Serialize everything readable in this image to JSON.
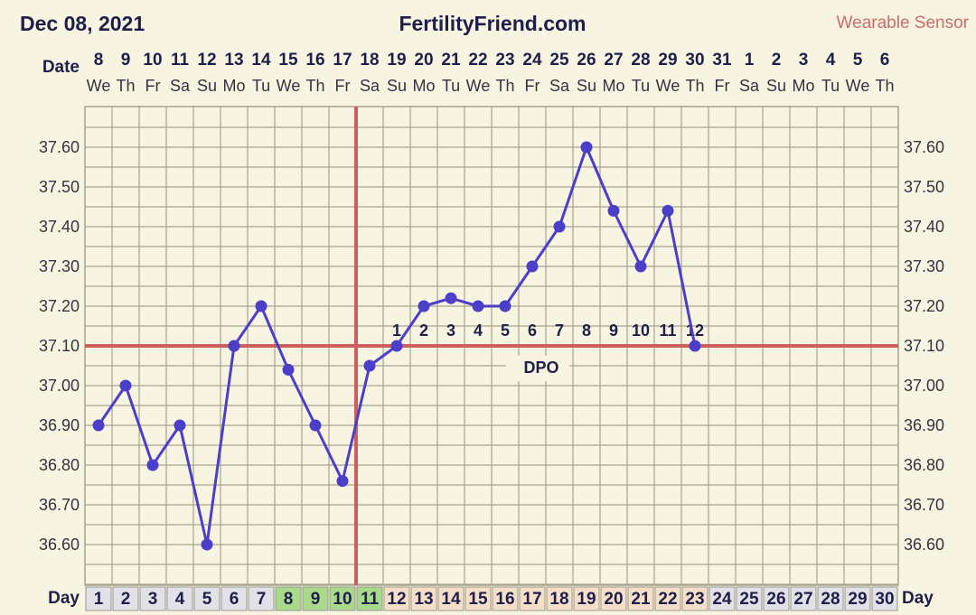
{
  "header": {
    "date": "Dec 08, 2021",
    "site": "FertilityFriend.com",
    "sensor": "Wearable Sensor"
  },
  "labels": {
    "date_row": "Date",
    "day_row": "Day",
    "dpo": "DPO"
  },
  "colors": {
    "background": "#f7f5e2",
    "grid": "#a7a38f",
    "line": "#4b3ec8",
    "point": "#4b3ec8",
    "coverline": "#cf5f5f",
    "title": "#1e1e4a",
    "sensor": "#d06a6a",
    "day_default": "#e3e1e8",
    "day_fertile": "#a9d98b",
    "day_luteal": "#f6dfc9"
  },
  "chart_data": {
    "type": "line",
    "dates": [
      "8",
      "9",
      "10",
      "11",
      "12",
      "13",
      "14",
      "15",
      "16",
      "17",
      "18",
      "19",
      "20",
      "21",
      "22",
      "23",
      "24",
      "25",
      "26",
      "27",
      "28",
      "29",
      "30",
      "31",
      "1",
      "2",
      "3",
      "4",
      "5",
      "6"
    ],
    "weekdays": [
      "We",
      "Th",
      "Fr",
      "Sa",
      "Su",
      "Mo",
      "Tu",
      "We",
      "Th",
      "Fr",
      "Sa",
      "Su",
      "Mo",
      "Tu",
      "We",
      "Th",
      "Fr",
      "Sa",
      "Su",
      "Mo",
      "Tu",
      "We",
      "Th",
      "Fr",
      "Sa",
      "Su",
      "Mo",
      "Tu",
      "We",
      "Th"
    ],
    "days": [
      "1",
      "2",
      "3",
      "4",
      "5",
      "6",
      "7",
      "8",
      "9",
      "10",
      "11",
      "12",
      "13",
      "14",
      "15",
      "16",
      "17",
      "18",
      "19",
      "20",
      "21",
      "22",
      "23",
      "24",
      "25",
      "26",
      "27",
      "28",
      "29",
      "30"
    ],
    "day_types": [
      "default",
      "default",
      "default",
      "default",
      "default",
      "default",
      "default",
      "fertile",
      "fertile",
      "fertile",
      "fertile",
      "luteal",
      "luteal",
      "luteal",
      "luteal",
      "luteal",
      "luteal",
      "luteal",
      "luteal",
      "luteal",
      "luteal",
      "luteal",
      "luteal",
      "default",
      "default",
      "default",
      "default",
      "default",
      "default",
      "default"
    ],
    "temperatures": [
      36.9,
      37.0,
      36.8,
      36.9,
      36.6,
      37.1,
      37.2,
      37.04,
      36.9,
      36.76,
      37.05,
      37.1,
      37.2,
      37.22,
      37.2,
      37.2,
      37.3,
      37.4,
      37.6,
      37.44,
      37.3,
      37.44,
      37.1
    ],
    "dpo_labels": [
      "1",
      "2",
      "3",
      "4",
      "5",
      "6",
      "7",
      "8",
      "9",
      "10",
      "11",
      "12"
    ],
    "dpo_start_day": 12,
    "y_ticks": [
      "36.60",
      "36.70",
      "36.80",
      "36.90",
      "37.00",
      "37.10",
      "37.20",
      "37.30",
      "37.40",
      "37.50",
      "37.60"
    ],
    "ylim": [
      36.5,
      37.7
    ],
    "coverline": 37.1,
    "ovulation_day": 11,
    "grid": true
  }
}
